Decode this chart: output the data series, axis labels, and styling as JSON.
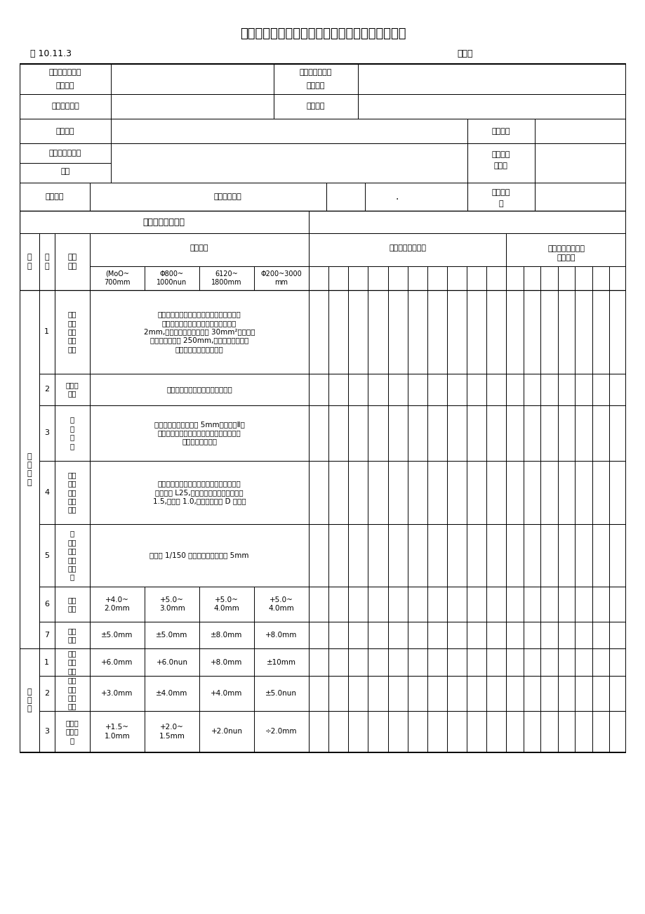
{
  "title": "预应力混凝土输水管制作管芯检验批质量验收记录",
  "table_no": "表 10.11.3",
  "biannum": "编号：",
  "bg": "#ffffff",
  "lc": "#000000"
}
